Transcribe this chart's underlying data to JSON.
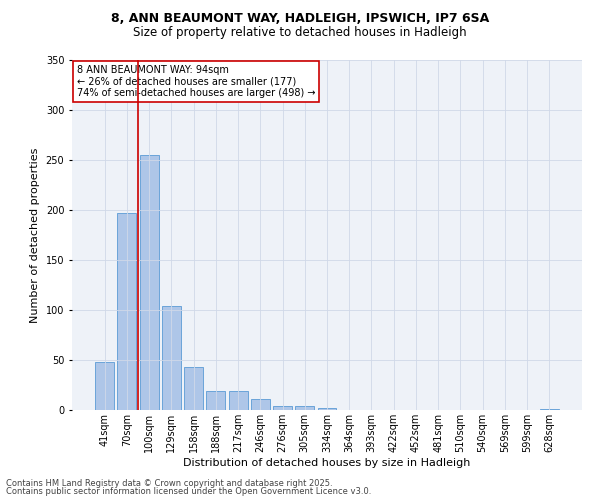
{
  "title_line1": "8, ANN BEAUMONT WAY, HADLEIGH, IPSWICH, IP7 6SA",
  "title_line2": "Size of property relative to detached houses in Hadleigh",
  "xlabel": "Distribution of detached houses by size in Hadleigh",
  "ylabel": "Number of detached properties",
  "categories": [
    "41sqm",
    "70sqm",
    "100sqm",
    "129sqm",
    "158sqm",
    "188sqm",
    "217sqm",
    "246sqm",
    "276sqm",
    "305sqm",
    "334sqm",
    "364sqm",
    "393sqm",
    "422sqm",
    "452sqm",
    "481sqm",
    "510sqm",
    "540sqm",
    "569sqm",
    "599sqm",
    "628sqm"
  ],
  "values": [
    48,
    197,
    255,
    104,
    43,
    19,
    19,
    11,
    4,
    4,
    2,
    0,
    0,
    0,
    0,
    0,
    0,
    0,
    0,
    0,
    1
  ],
  "bar_color": "#aec6e8",
  "bar_edgecolor": "#5b9bd5",
  "vline_x": 1.5,
  "vline_color": "#cc0000",
  "annotation_text": "8 ANN BEAUMONT WAY: 94sqm\n← 26% of detached houses are smaller (177)\n74% of semi-detached houses are larger (498) →",
  "annotation_box_color": "#cc0000",
  "ylim": [
    0,
    350
  ],
  "yticks": [
    0,
    50,
    100,
    150,
    200,
    250,
    300,
    350
  ],
  "grid_color": "#d0d8e8",
  "background_color": "#eef2f8",
  "footer_line1": "Contains HM Land Registry data © Crown copyright and database right 2025.",
  "footer_line2": "Contains public sector information licensed under the Open Government Licence v3.0.",
  "title_fontsize": 9,
  "subtitle_fontsize": 8.5,
  "label_fontsize": 8,
  "tick_fontsize": 7,
  "annotation_fontsize": 7,
  "footer_fontsize": 6
}
